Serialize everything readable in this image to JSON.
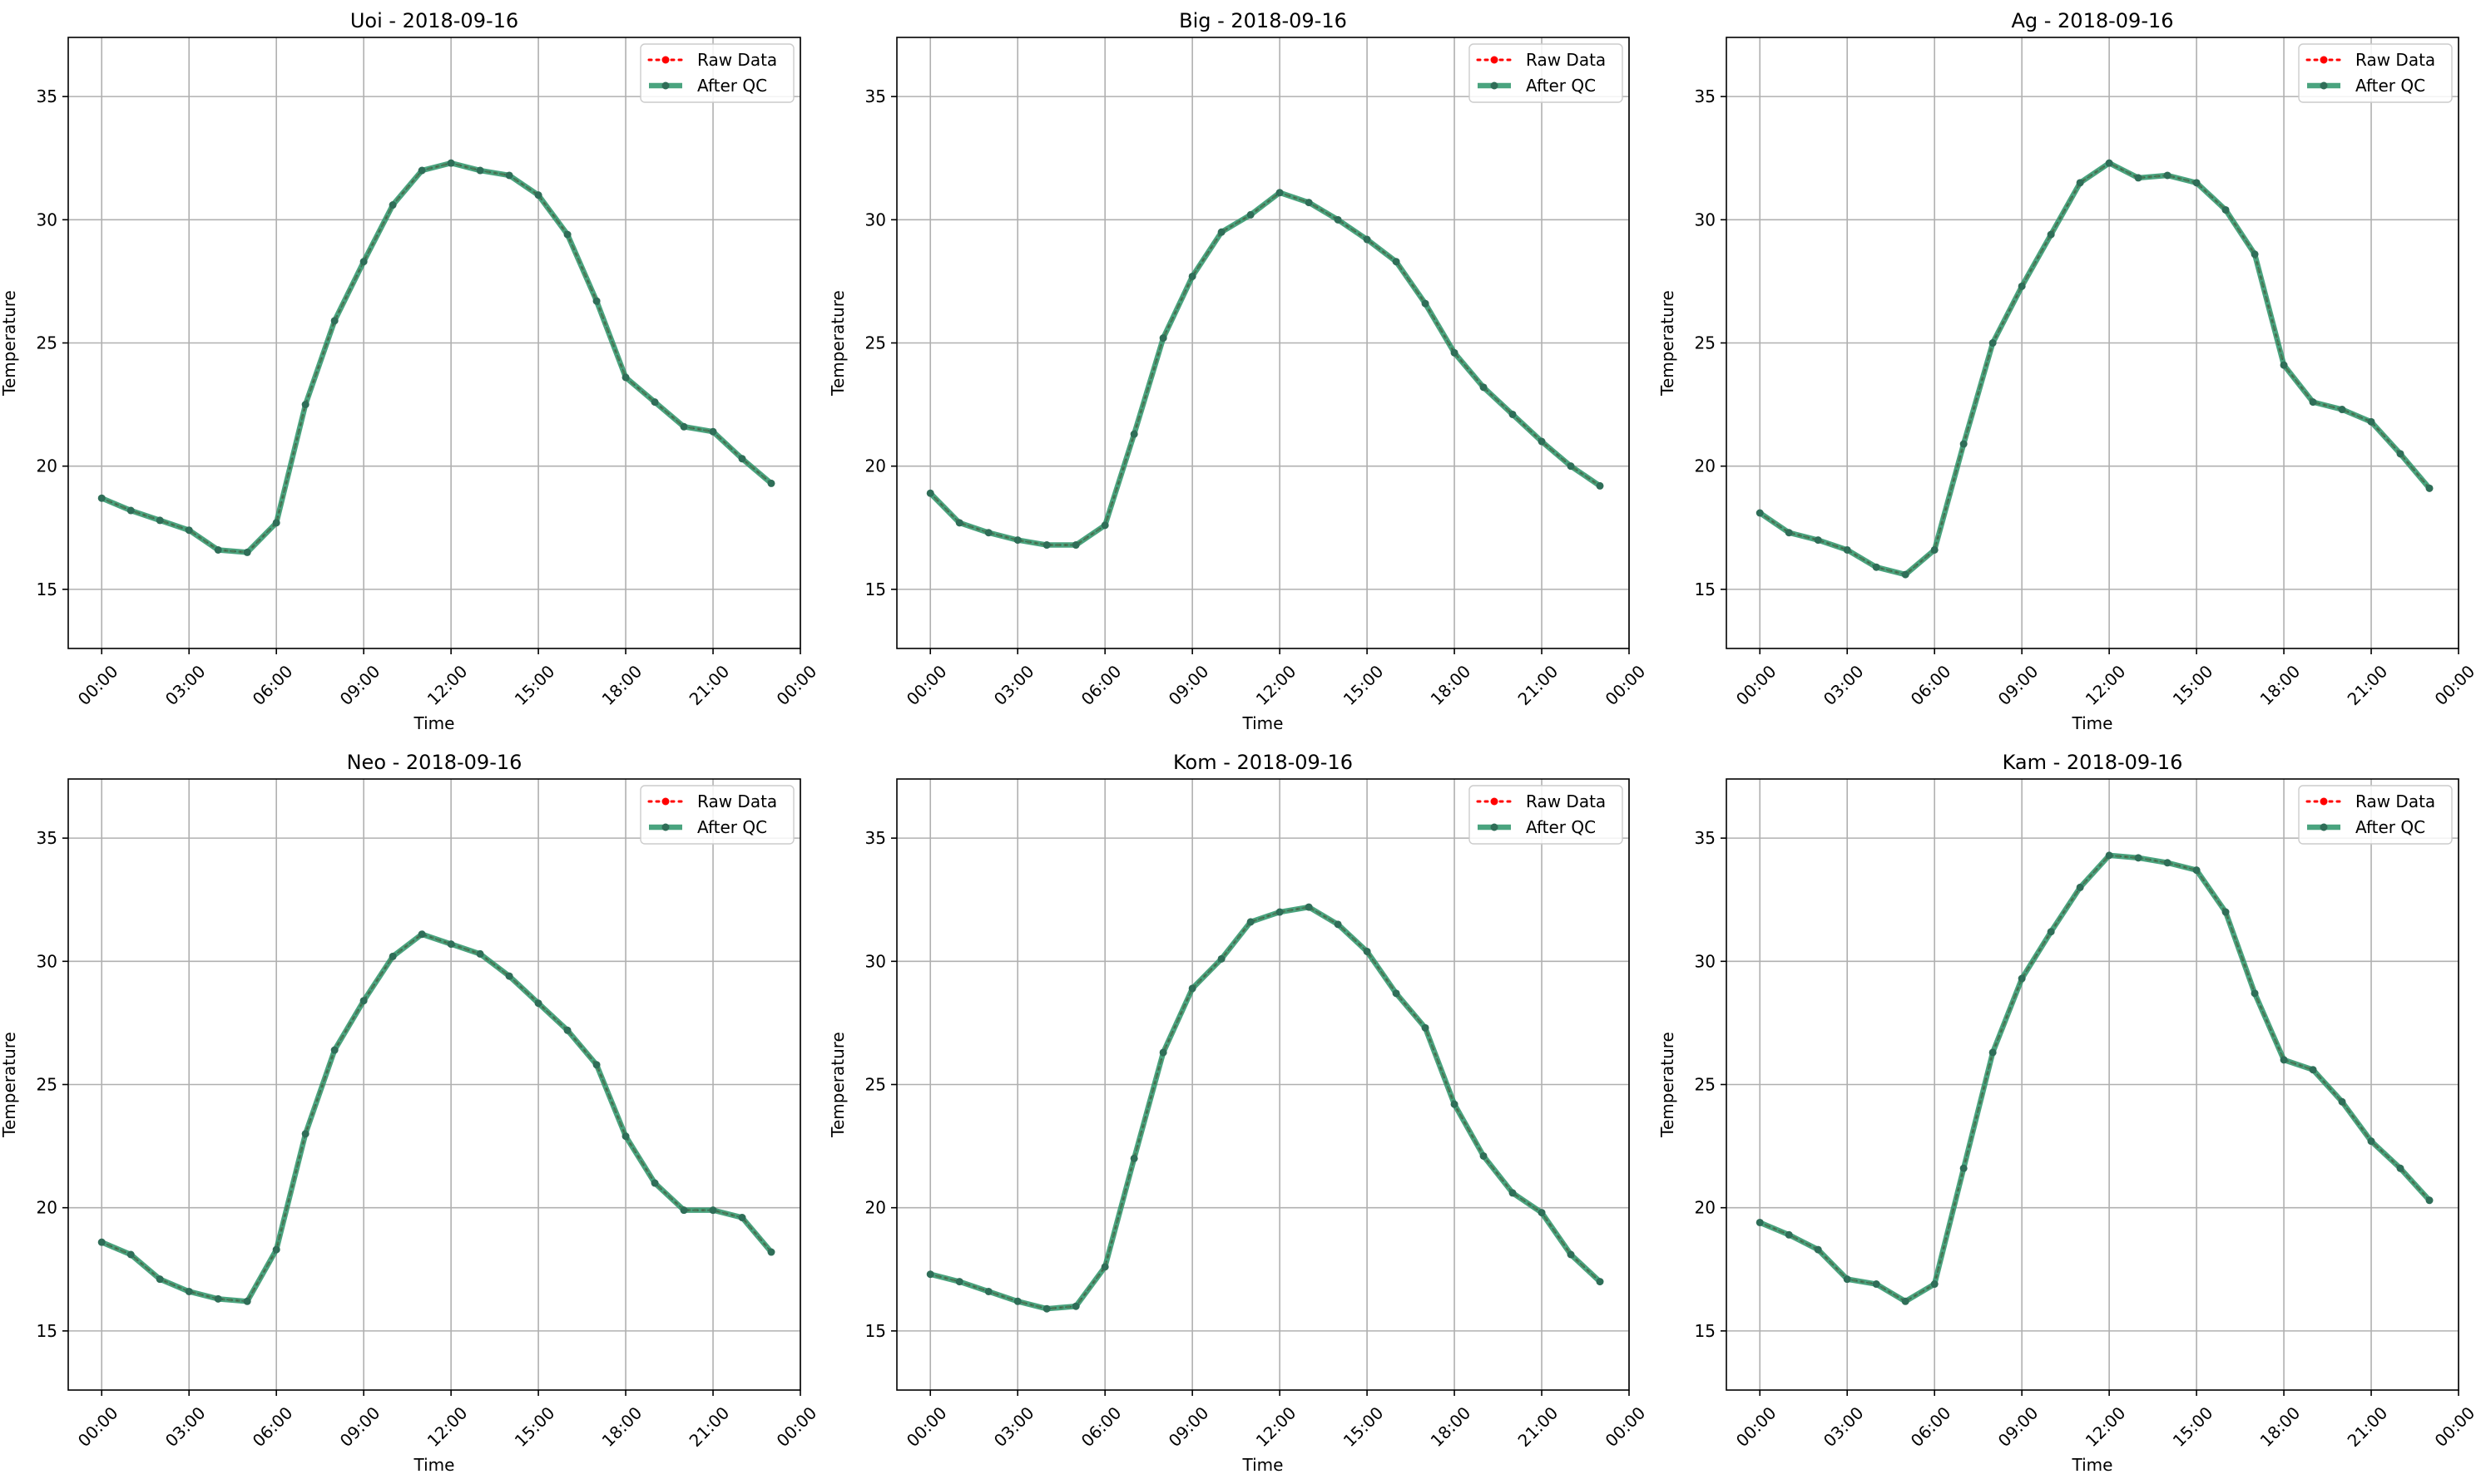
{
  "chart_data": [
    {
      "type": "line",
      "title": "Uoi - 2018-09-16",
      "xlabel": "Time",
      "ylabel": "Temperature",
      "xticks": [
        "00:00",
        "03:00",
        "06:00",
        "09:00",
        "12:00",
        "15:00",
        "18:00",
        "21:00",
        "00:00"
      ],
      "yticks": [
        15,
        20,
        25,
        30,
        35
      ],
      "ylim": [
        12.6,
        37.4
      ],
      "grid": true,
      "legend_position": "top-right",
      "x_hours": [
        0,
        1,
        2,
        3,
        4,
        5,
        6,
        7,
        8,
        9,
        10,
        11,
        12,
        13,
        14,
        15,
        16,
        17,
        18,
        19,
        20,
        21,
        22,
        23
      ],
      "series": [
        {
          "name": "Raw Data",
          "color": "#ff0000",
          "values": [
            18.7,
            18.2,
            17.8,
            17.4,
            16.6,
            16.5,
            17.7,
            22.5,
            25.9,
            28.3,
            30.6,
            32.0,
            32.3,
            32.0,
            31.8,
            31.0,
            29.4,
            26.7,
            23.6,
            22.6,
            21.6,
            21.4,
            20.3,
            19.3
          ]
        },
        {
          "name": "After QC",
          "color": "#2ca02c",
          "values": [
            18.7,
            18.2,
            17.8,
            17.4,
            16.6,
            16.5,
            17.7,
            22.5,
            25.9,
            28.3,
            30.6,
            32.0,
            32.3,
            32.0,
            31.8,
            31.0,
            29.4,
            26.7,
            23.6,
            22.6,
            21.6,
            21.4,
            20.3,
            19.3
          ]
        }
      ]
    },
    {
      "type": "line",
      "title": "Big - 2018-09-16",
      "xlabel": "Time",
      "ylabel": "Temperature",
      "xticks": [
        "00:00",
        "03:00",
        "06:00",
        "09:00",
        "12:00",
        "15:00",
        "18:00",
        "21:00",
        "00:00"
      ],
      "yticks": [
        15,
        20,
        25,
        30,
        35
      ],
      "ylim": [
        12.6,
        37.4
      ],
      "grid": true,
      "legend_position": "top-right",
      "x_hours": [
        0,
        1,
        2,
        3,
        4,
        5,
        6,
        7,
        8,
        9,
        10,
        11,
        12,
        13,
        14,
        15,
        16,
        17,
        18,
        19,
        20,
        21,
        22,
        23
      ],
      "series": [
        {
          "name": "Raw Data",
          "color": "#ff0000",
          "values": [
            18.9,
            17.7,
            17.3,
            17.0,
            16.8,
            16.8,
            17.6,
            21.3,
            25.2,
            27.7,
            29.5,
            30.2,
            31.1,
            30.7,
            30.0,
            29.2,
            28.3,
            26.6,
            24.6,
            23.2,
            22.1,
            21.0,
            20.0,
            19.2
          ]
        },
        {
          "name": "After QC",
          "color": "#2ca02c",
          "values": [
            18.9,
            17.7,
            17.3,
            17.0,
            16.8,
            16.8,
            17.6,
            21.3,
            25.2,
            27.7,
            29.5,
            30.2,
            31.1,
            30.7,
            30.0,
            29.2,
            28.3,
            26.6,
            24.6,
            23.2,
            22.1,
            21.0,
            20.0,
            19.2
          ]
        }
      ]
    },
    {
      "type": "line",
      "title": "Ag - 2018-09-16",
      "xlabel": "Time",
      "ylabel": "Temperature",
      "xticks": [
        "00:00",
        "03:00",
        "06:00",
        "09:00",
        "12:00",
        "15:00",
        "18:00",
        "21:00",
        "00:00"
      ],
      "yticks": [
        15,
        20,
        25,
        30,
        35
      ],
      "ylim": [
        12.6,
        37.4
      ],
      "grid": true,
      "legend_position": "top-right",
      "x_hours": [
        0,
        1,
        2,
        3,
        4,
        5,
        6,
        7,
        8,
        9,
        10,
        11,
        12,
        13,
        14,
        15,
        16,
        17,
        18,
        19,
        20,
        21,
        22,
        23
      ],
      "series": [
        {
          "name": "Raw Data",
          "color": "#ff0000",
          "values": [
            18.1,
            17.3,
            17.0,
            16.6,
            15.9,
            15.6,
            16.6,
            20.9,
            25.0,
            27.3,
            29.4,
            31.5,
            32.3,
            31.7,
            31.8,
            31.5,
            30.4,
            28.6,
            24.1,
            22.6,
            22.3,
            21.8,
            20.5,
            19.1
          ]
        },
        {
          "name": "After QC",
          "color": "#2ca02c",
          "values": [
            18.1,
            17.3,
            17.0,
            16.6,
            15.9,
            15.6,
            16.6,
            20.9,
            25.0,
            27.3,
            29.4,
            31.5,
            32.3,
            31.7,
            31.8,
            31.5,
            30.4,
            28.6,
            24.1,
            22.6,
            22.3,
            21.8,
            20.5,
            19.1
          ]
        }
      ]
    },
    {
      "type": "line",
      "title": "Neo - 2018-09-16",
      "xlabel": "Time",
      "ylabel": "Temperature",
      "xticks": [
        "00:00",
        "03:00",
        "06:00",
        "09:00",
        "12:00",
        "15:00",
        "18:00",
        "21:00",
        "00:00"
      ],
      "yticks": [
        15,
        20,
        25,
        30,
        35
      ],
      "ylim": [
        12.6,
        37.4
      ],
      "grid": true,
      "legend_position": "top-right",
      "x_hours": [
        0,
        1,
        2,
        3,
        4,
        5,
        6,
        7,
        8,
        9,
        10,
        11,
        12,
        13,
        14,
        15,
        16,
        17,
        18,
        19,
        20,
        21,
        22,
        23
      ],
      "series": [
        {
          "name": "Raw Data",
          "color": "#ff0000",
          "values": [
            18.6,
            18.1,
            17.1,
            16.6,
            16.3,
            16.2,
            18.3,
            23.0,
            26.4,
            28.4,
            30.2,
            31.1,
            30.7,
            30.3,
            29.4,
            28.3,
            27.2,
            25.8,
            22.9,
            21.0,
            19.9,
            19.9,
            19.6,
            18.2
          ]
        },
        {
          "name": "After QC",
          "color": "#2ca02c",
          "values": [
            18.6,
            18.1,
            17.1,
            16.6,
            16.3,
            16.2,
            18.3,
            23.0,
            26.4,
            28.4,
            30.2,
            31.1,
            30.7,
            30.3,
            29.4,
            28.3,
            27.2,
            25.8,
            22.9,
            21.0,
            19.9,
            19.9,
            19.6,
            18.2
          ]
        }
      ]
    },
    {
      "type": "line",
      "title": "Kom - 2018-09-16",
      "xlabel": "Time",
      "ylabel": "Temperature",
      "xticks": [
        "00:00",
        "03:00",
        "06:00",
        "09:00",
        "12:00",
        "15:00",
        "18:00",
        "21:00",
        "00:00"
      ],
      "yticks": [
        15,
        20,
        25,
        30,
        35
      ],
      "ylim": [
        12.6,
        37.4
      ],
      "grid": true,
      "legend_position": "top-right",
      "x_hours": [
        0,
        1,
        2,
        3,
        4,
        5,
        6,
        7,
        8,
        9,
        10,
        11,
        12,
        13,
        14,
        15,
        16,
        17,
        18,
        19,
        20,
        21,
        22,
        23
      ],
      "series": [
        {
          "name": "Raw Data",
          "color": "#ff0000",
          "values": [
            17.3,
            17.0,
            16.6,
            16.2,
            15.9,
            16.0,
            17.6,
            22.0,
            26.3,
            28.9,
            30.1,
            31.6,
            32.0,
            32.2,
            31.5,
            30.4,
            28.7,
            27.3,
            24.2,
            22.1,
            20.6,
            19.8,
            18.1,
            17.0
          ]
        },
        {
          "name": "After QC",
          "color": "#2ca02c",
          "values": [
            17.3,
            17.0,
            16.6,
            16.2,
            15.9,
            16.0,
            17.6,
            22.0,
            26.3,
            28.9,
            30.1,
            31.6,
            32.0,
            32.2,
            31.5,
            30.4,
            28.7,
            27.3,
            24.2,
            22.1,
            20.6,
            19.8,
            18.1,
            17.0
          ]
        }
      ]
    },
    {
      "type": "line",
      "title": "Kam - 2018-09-16",
      "xlabel": "Time",
      "ylabel": "Temperature",
      "xticks": [
        "00:00",
        "03:00",
        "06:00",
        "09:00",
        "12:00",
        "15:00",
        "18:00",
        "21:00",
        "00:00"
      ],
      "yticks": [
        15,
        20,
        25,
        30,
        35
      ],
      "ylim": [
        12.6,
        37.4
      ],
      "grid": true,
      "legend_position": "top-right",
      "x_hours": [
        0,
        1,
        2,
        3,
        4,
        5,
        6,
        7,
        8,
        9,
        10,
        11,
        12,
        13,
        14,
        15,
        16,
        17,
        18,
        19,
        20,
        21,
        22,
        23
      ],
      "series": [
        {
          "name": "Raw Data",
          "color": "#ff0000",
          "values": [
            19.4,
            18.9,
            18.3,
            17.1,
            16.9,
            16.2,
            16.9,
            21.6,
            26.3,
            29.3,
            31.2,
            33.0,
            34.3,
            34.2,
            34.0,
            33.7,
            32.0,
            28.7,
            26.0,
            25.6,
            24.3,
            22.7,
            21.6,
            20.3
          ]
        },
        {
          "name": "After QC",
          "color": "#2ca02c",
          "values": [
            19.4,
            18.9,
            18.3,
            17.1,
            16.9,
            16.2,
            16.9,
            21.6,
            26.3,
            29.3,
            31.2,
            33.0,
            34.3,
            34.2,
            34.0,
            33.7,
            32.0,
            28.7,
            26.0,
            25.6,
            24.3,
            22.7,
            21.6,
            20.3
          ]
        }
      ]
    }
  ]
}
